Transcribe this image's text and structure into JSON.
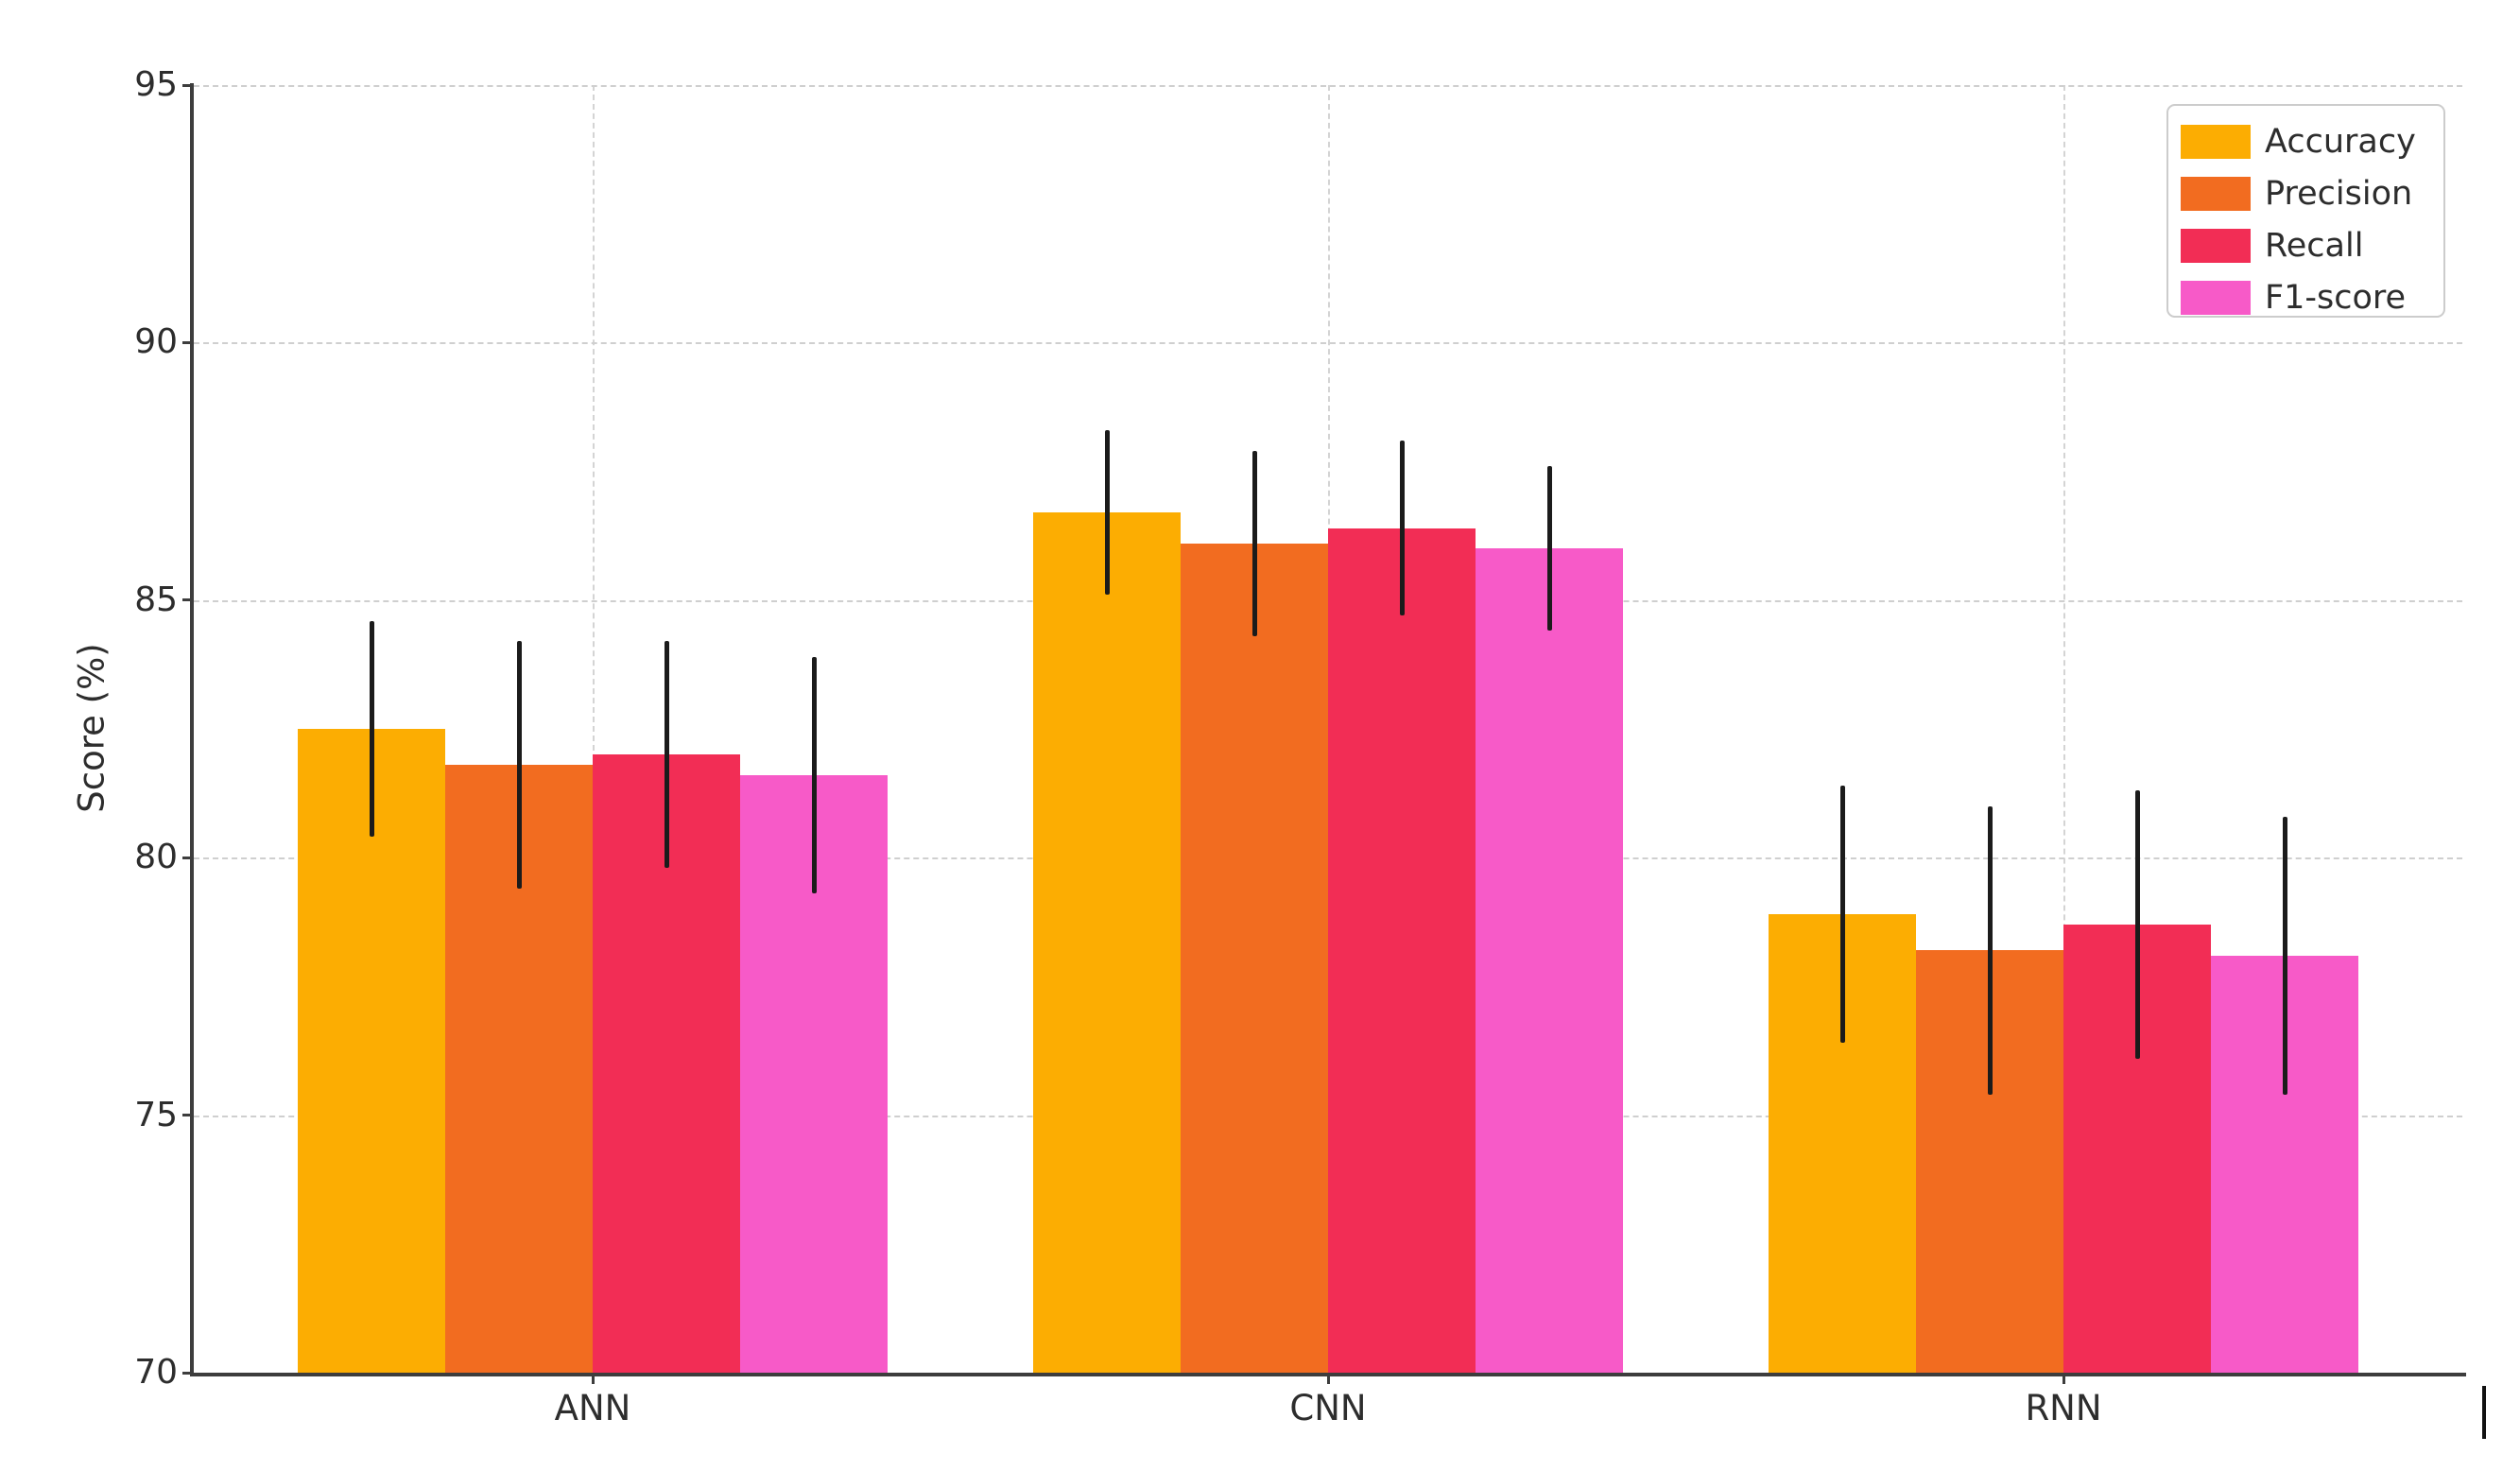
{
  "chart_data": {
    "type": "bar",
    "title": "",
    "categories": [
      "ANN",
      "CNN",
      "RNN"
    ],
    "series": [
      {
        "name": "Accuracy",
        "color": "#FCAD02",
        "values": [
          82.5,
          86.7,
          78.9
        ],
        "errors": [
          2.1,
          1.6,
          2.5
        ]
      },
      {
        "name": "Precision",
        "color": "#F26C20",
        "values": [
          81.8,
          86.1,
          78.2
        ],
        "errors": [
          2.4,
          1.8,
          2.8
        ]
      },
      {
        "name": "Recall",
        "color": "#F22D55",
        "values": [
          82.0,
          86.4,
          78.7
        ],
        "errors": [
          2.2,
          1.7,
          2.6
        ]
      },
      {
        "name": "F1-score",
        "color": "#F75AC8",
        "values": [
          81.6,
          86.0,
          78.1
        ],
        "errors": [
          2.3,
          1.6,
          2.7
        ]
      }
    ],
    "xlabel": "",
    "ylabel": "Score (%)",
    "ylim": [
      70,
      95
    ],
    "yticks": [
      70,
      75,
      80,
      85,
      90,
      95
    ],
    "grid": "dashed, horizontal at y ticks and vertical at category centers",
    "legend_position": "upper right",
    "error_bar_color": "#1b1b1b",
    "background_color": "#ffffff"
  }
}
